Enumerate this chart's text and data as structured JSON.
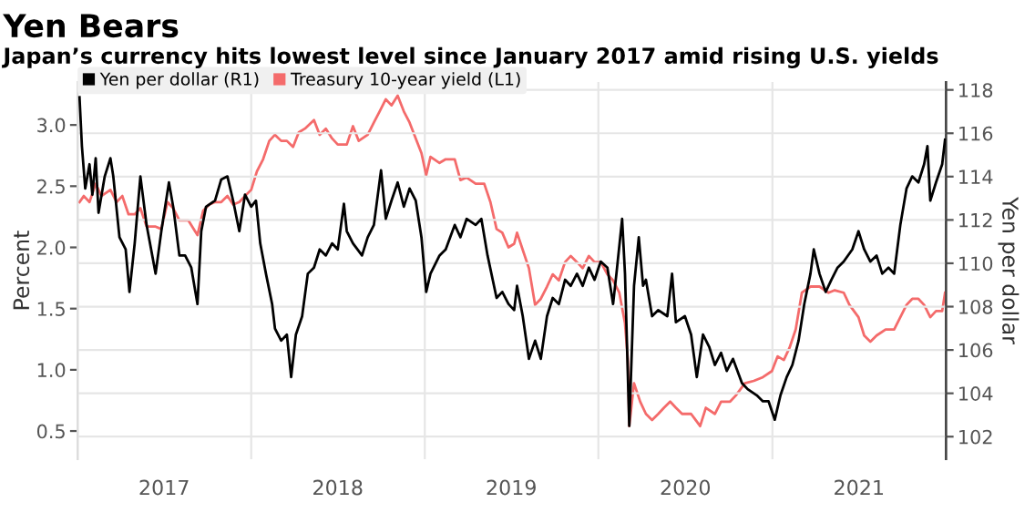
{
  "chart_data": {
    "type": "line",
    "title": "Yen Bears",
    "subtitle": "Japan’s currency hits lowest level since January 2017 amid rising U.S. yields",
    "ylabel": "Percent",
    "y2label": "Yen per dollar",
    "xlim": [
      "2017-01-01",
      "2022-01-01"
    ],
    "xticks": [
      {
        "value": "2017-07-02",
        "label": "2017"
      },
      {
        "value": "2018-07-02",
        "label": "2018"
      },
      {
        "value": "2019-07-02",
        "label": "2019"
      },
      {
        "value": "2020-07-02",
        "label": "2020"
      },
      {
        "value": "2021-07-02",
        "label": "2021"
      },
      {
        "value": "2018-01-01",
        "label": null
      },
      {
        "value": "2019-01-01",
        "label": null
      },
      {
        "value": "2020-01-01",
        "label": null
      },
      {
        "value": "2021-01-01",
        "label": null
      }
    ],
    "ylim": [
      0.27,
      3.35
    ],
    "yticks": [
      0.5,
      {
        "value": 1,
        "label": "1.0"
      },
      1.5,
      {
        "value": 2,
        "label": "2.0"
      },
      2.5,
      {
        "value": 3,
        "label": "3.0"
      }
    ],
    "y2lim": [
      100.96,
      118.36
    ],
    "y2ticks": [
      102,
      104,
      106,
      108,
      110,
      112,
      114,
      116,
      118
    ],
    "grid": true,
    "legend": "top left",
    "series": [
      {
        "name": "Yen per dollar (R1)",
        "color": "#000000",
        "axis": "y2",
        "x": [
          "2017-01-05",
          "2017-01-10",
          "2017-01-17",
          "2017-01-26",
          "2017-02-01",
          "2017-02-08",
          "2017-02-14",
          "2017-02-27",
          "2017-03-11",
          "2017-03-17",
          "2017-03-30",
          "2017-04-12",
          "2017-04-20",
          "2017-05-01",
          "2017-05-13",
          "2017-05-26",
          "2017-06-14",
          "2017-06-26",
          "2017-07-12",
          "2017-07-21",
          "2017-08-03",
          "2017-08-15",
          "2017-08-28",
          "2017-09-10",
          "2017-09-18",
          "2017-09-28",
          "2017-10-17",
          "2017-10-30",
          "2017-11-12",
          "2017-11-24",
          "2017-12-07",
          "2017-12-19",
          "2018-01-01",
          "2018-01-11",
          "2018-01-20",
          "2018-02-01",
          "2018-02-14",
          "2018-02-20",
          "2018-03-05",
          "2018-03-17",
          "2018-03-26",
          "2018-04-05",
          "2018-04-18",
          "2018-04-30",
          "2018-05-13",
          "2018-05-25",
          "2018-06-07",
          "2018-06-20",
          "2018-07-02",
          "2018-07-15",
          "2018-07-21",
          "2018-08-03",
          "2018-08-22",
          "2018-09-03",
          "2018-09-16",
          "2018-10-01",
          "2018-10-11",
          "2018-10-23",
          "2018-11-05",
          "2018-11-18",
          "2018-11-30",
          "2018-12-13",
          "2018-12-25",
          "2019-01-04",
          "2019-01-13",
          "2019-02-01",
          "2019-02-14",
          "2019-03-05",
          "2019-03-17",
          "2019-03-30",
          "2019-04-18",
          "2019-04-30",
          "2019-05-13",
          "2019-06-01",
          "2019-06-13",
          "2019-06-26",
          "2019-07-08",
          "2019-07-14",
          "2019-07-26",
          "2019-08-08",
          "2019-08-21",
          "2019-09-02",
          "2019-09-15",
          "2019-09-27",
          "2019-10-10",
          "2019-10-23",
          "2019-11-04",
          "2019-11-17",
          "2019-11-29",
          "2019-12-12",
          "2019-12-24",
          "2020-01-06",
          "2020-01-20",
          "2020-02-01",
          "2020-02-08",
          "2020-02-20",
          "2020-02-26",
          "2020-03-06",
          "2020-03-16",
          "2020-03-26",
          "2020-04-04",
          "2020-04-10",
          "2020-04-23",
          "2020-05-06",
          "2020-05-25",
          "2020-06-04",
          "2020-06-12",
          "2020-07-01",
          "2020-07-14",
          "2020-07-26",
          "2020-08-08",
          "2020-08-21",
          "2020-09-02",
          "2020-09-15",
          "2020-09-27",
          "2020-10-10",
          "2020-10-29",
          "2020-11-10",
          "2020-11-29",
          "2020-12-12",
          "2020-12-24",
          "2021-01-06",
          "2021-01-18",
          "2021-01-31",
          "2021-02-12",
          "2021-02-25",
          "2021-03-09",
          "2021-03-22",
          "2021-03-29",
          "2021-04-10",
          "2021-04-23",
          "2021-05-05",
          "2021-05-18",
          "2021-05-31",
          "2021-06-18",
          "2021-07-01",
          "2021-07-13",
          "2021-07-26",
          "2021-08-08",
          "2021-08-20",
          "2021-09-02",
          "2021-09-14",
          "2021-09-27",
          "2021-10-10",
          "2021-10-22",
          "2021-11-04",
          "2021-11-16",
          "2021-11-23",
          "2021-11-29",
          "2021-12-11",
          "2021-12-24",
          "2021-12-30"
        ],
        "values": [
          117.66,
          115.41,
          113.45,
          114.57,
          113.17,
          114.85,
          112.33,
          114.01,
          114.85,
          114.01,
          111.2,
          110.64,
          108.68,
          110.92,
          114.01,
          111.77,
          109.52,
          111.48,
          113.73,
          112.61,
          110.36,
          110.36,
          109.8,
          108.12,
          111.48,
          112.61,
          112.89,
          113.87,
          114.01,
          112.89,
          111.48,
          113.17,
          112.61,
          112.89,
          110.92,
          109.52,
          108.12,
          106.99,
          106.43,
          106.71,
          104.75,
          106.71,
          107.55,
          109.52,
          109.8,
          110.64,
          110.36,
          110.92,
          110.64,
          112.75,
          111.48,
          110.92,
          110.36,
          111.2,
          111.77,
          114.29,
          112.05,
          112.89,
          113.73,
          112.61,
          113.45,
          112.89,
          111.2,
          108.68,
          109.52,
          110.36,
          110.64,
          111.77,
          111.2,
          112.05,
          111.77,
          112.05,
          110.36,
          108.4,
          108.68,
          108.12,
          107.84,
          108.96,
          107.56,
          105.59,
          106.43,
          105.59,
          107.56,
          108.4,
          108.12,
          109.24,
          108.96,
          109.52,
          108.96,
          109.8,
          109.24,
          110.08,
          109.8,
          108.12,
          109.52,
          112.05,
          109.52,
          102.5,
          108.96,
          111.2,
          108.96,
          109.24,
          107.56,
          107.84,
          107.56,
          109.52,
          107.28,
          107.56,
          106.71,
          104.75,
          106.71,
          106.15,
          105.31,
          105.87,
          105.03,
          105.59,
          104.47,
          104.19,
          103.91,
          103.63,
          103.63,
          102.78,
          103.91,
          104.75,
          105.31,
          106.43,
          108.12,
          109.52,
          110.64,
          109.52,
          108.68,
          109.24,
          109.8,
          110.08,
          110.64,
          111.48,
          110.64,
          110.08,
          110.36,
          109.52,
          109.8,
          109.52,
          111.77,
          113.45,
          114.01,
          113.73,
          114.57,
          115.41,
          112.89,
          113.73,
          114.57,
          115.7
        ]
      },
      {
        "name": "Treasury 10-year yield (L1)",
        "color": "#f46b6b",
        "x": [
          "2017-01-05",
          "2017-01-14",
          "2017-01-26",
          "2017-02-08",
          "2017-02-20",
          "2017-03-11",
          "2017-03-24",
          "2017-04-05",
          "2017-04-18",
          "2017-05-01",
          "2017-05-13",
          "2017-05-26",
          "2017-06-14",
          "2017-06-26",
          "2017-07-09",
          "2017-07-21",
          "2017-08-03",
          "2017-08-22",
          "2017-09-10",
          "2017-09-22",
          "2017-10-05",
          "2017-10-17",
          "2017-10-30",
          "2017-11-12",
          "2017-11-24",
          "2017-12-07",
          "2017-12-19",
          "2018-01-01",
          "2018-01-13",
          "2018-01-26",
          "2018-02-08",
          "2018-02-20",
          "2018-03-05",
          "2018-03-17",
          "2018-03-30",
          "2018-04-11",
          "2018-04-24",
          "2018-05-13",
          "2018-05-25",
          "2018-06-07",
          "2018-06-20",
          "2018-07-02",
          "2018-07-21",
          "2018-08-03",
          "2018-08-15",
          "2018-09-03",
          "2018-09-16",
          "2018-09-28",
          "2018-10-11",
          "2018-10-23",
          "2018-11-05",
          "2018-11-18",
          "2018-11-30",
          "2018-12-13",
          "2018-12-25",
          "2019-01-04",
          "2019-01-13",
          "2019-02-01",
          "2019-02-14",
          "2019-03-05",
          "2019-03-17",
          "2019-03-30",
          "2019-04-18",
          "2019-05-06",
          "2019-05-19",
          "2019-06-01",
          "2019-06-13",
          "2019-06-26",
          "2019-07-08",
          "2019-07-14",
          "2019-07-26",
          "2019-08-08",
          "2019-08-21",
          "2019-09-02",
          "2019-09-15",
          "2019-09-27",
          "2019-10-10",
          "2019-10-23",
          "2019-11-04",
          "2019-11-17",
          "2019-11-29",
          "2019-12-12",
          "2019-12-24",
          "2020-01-06",
          "2020-01-20",
          "2020-02-01",
          "2020-02-14",
          "2020-02-26",
          "2020-03-03",
          "2020-03-06",
          "2020-03-16",
          "2020-03-29",
          "2020-04-10",
          "2020-04-23",
          "2020-05-06",
          "2020-05-18",
          "2020-05-31",
          "2020-06-12",
          "2020-06-25",
          "2020-07-14",
          "2020-08-02",
          "2020-08-14",
          "2020-09-02",
          "2020-09-15",
          "2020-10-04",
          "2020-10-16",
          "2020-11-04",
          "2020-11-23",
          "2020-12-12",
          "2020-12-31",
          "2021-01-12",
          "2021-01-25",
          "2021-02-06",
          "2021-02-19",
          "2021-03-04",
          "2021-03-22",
          "2021-04-10",
          "2021-04-29",
          "2021-05-12",
          "2021-05-31",
          "2021-06-12",
          "2021-07-01",
          "2021-07-13",
          "2021-07-26",
          "2021-08-08",
          "2021-08-27",
          "2021-09-14",
          "2021-09-27",
          "2021-10-10",
          "2021-10-22",
          "2021-11-04",
          "2021-11-16",
          "2021-11-29",
          "2021-12-11",
          "2021-12-24",
          "2021-12-30"
        ],
        "values": [
          2.37,
          2.42,
          2.37,
          2.52,
          2.42,
          2.47,
          2.37,
          2.42,
          2.27,
          2.27,
          2.32,
          2.17,
          2.17,
          2.15,
          2.37,
          2.32,
          2.22,
          2.22,
          2.1,
          2.3,
          2.35,
          2.37,
          2.37,
          2.42,
          2.35,
          2.37,
          2.42,
          2.47,
          2.62,
          2.72,
          2.87,
          2.92,
          2.87,
          2.87,
          2.82,
          2.94,
          2.97,
          3.04,
          2.92,
          2.97,
          2.89,
          2.84,
          2.84,
          2.99,
          2.87,
          2.92,
          3.02,
          3.11,
          3.21,
          3.16,
          3.24,
          3.11,
          3.02,
          2.89,
          2.77,
          2.59,
          2.74,
          2.69,
          2.72,
          2.72,
          2.55,
          2.57,
          2.52,
          2.52,
          2.37,
          2.15,
          2.12,
          2.0,
          2.03,
          2.12,
          1.98,
          1.83,
          1.53,
          1.58,
          1.68,
          1.78,
          1.73,
          1.88,
          1.93,
          1.88,
          1.83,
          1.93,
          1.88,
          1.88,
          1.78,
          1.73,
          1.63,
          1.38,
          1.08,
          0.54,
          0.89,
          0.74,
          0.64,
          0.59,
          0.64,
          0.69,
          0.74,
          0.69,
          0.64,
          0.64,
          0.54,
          0.69,
          0.64,
          0.74,
          0.74,
          0.79,
          0.89,
          0.91,
          0.94,
          0.99,
          1.11,
          1.08,
          1.18,
          1.33,
          1.63,
          1.68,
          1.68,
          1.63,
          1.65,
          1.63,
          1.53,
          1.43,
          1.28,
          1.23,
          1.28,
          1.33,
          1.33,
          1.43,
          1.53,
          1.58,
          1.58,
          1.53,
          1.43,
          1.48,
          1.48,
          1.63
        ]
      }
    ]
  }
}
